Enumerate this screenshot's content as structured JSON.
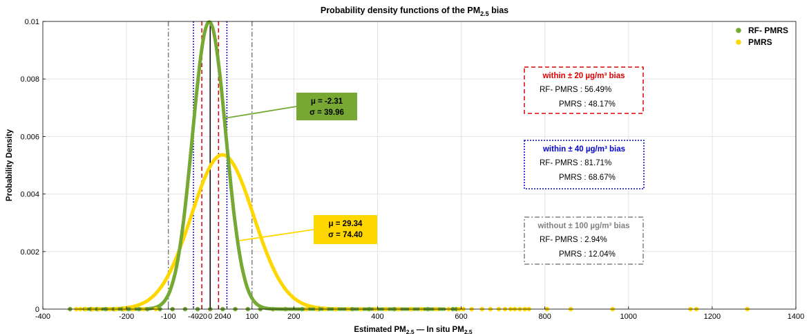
{
  "chart_data": {
    "type": "line",
    "title": "Probability density functions of the PM2.5 bias",
    "title_parts": {
      "pre": "Probability density functions of the PM",
      "sub": "2.5",
      "post": " bias"
    },
    "xlabel": "Estimated PM2.5 — In situ PM2.5",
    "xlabel_parts": {
      "a": "Estimated PM",
      "a_sub": "2.5",
      "mid": " — In situ PM",
      "b_sub": "2.5"
    },
    "ylabel": "Probability Density",
    "xlim": [
      -400,
      1400
    ],
    "ylim": [
      0,
      0.01
    ],
    "x_ticks": [
      {
        "v": -400,
        "label": "-400"
      },
      {
        "v": -200,
        "label": "-200"
      },
      {
        "v": -100,
        "label": "-100"
      },
      {
        "v": -40,
        "label": "-40"
      },
      {
        "v": -20,
        "label": "-20"
      },
      {
        "v": 0,
        "label": "0"
      },
      {
        "v": 20,
        "label": "20"
      },
      {
        "v": 40,
        "label": "40"
      },
      {
        "v": 100,
        "label": "100"
      },
      {
        "v": 200,
        "label": "200"
      },
      {
        "v": 400,
        "label": "400"
      },
      {
        "v": 600,
        "label": "600"
      },
      {
        "v": 800,
        "label": "800"
      },
      {
        "v": 1000,
        "label": "1000"
      },
      {
        "v": 1200,
        "label": "1200"
      },
      {
        "v": 1400,
        "label": "1400"
      }
    ],
    "y_ticks": [
      {
        "v": 0,
        "label": "0"
      },
      {
        "v": 0.002,
        "label": "0.002"
      },
      {
        "v": 0.004,
        "label": "0.004"
      },
      {
        "v": 0.006,
        "label": "0.006"
      },
      {
        "v": 0.008,
        "label": "0.008"
      },
      {
        "v": 0.01,
        "label": "0.01"
      }
    ],
    "grid": true,
    "legend_position": "top-right",
    "series": [
      {
        "name": "RF- PMRS",
        "color": "#76a833",
        "mu": -2.31,
        "sigma": 39.96,
        "mu_label": "μ = -2.31",
        "sigma_label": "σ = 39.96",
        "rug_x": [
          -335,
          -300,
          -285,
          -270,
          -250,
          -230,
          -210,
          -195,
          -170,
          -150,
          -120,
          -90,
          -60,
          -30,
          0,
          30,
          60,
          90,
          120,
          150,
          180,
          220,
          260,
          300,
          340,
          380,
          440,
          480,
          520,
          580,
          588
        ]
      },
      {
        "name": "PMRS",
        "color": "#ffd700",
        "mu": 29.34,
        "sigma": 74.4,
        "mu_label": "μ = 29.34",
        "sigma_label": "σ = 74.40",
        "rug_x": [
          -320,
          -310,
          -298,
          -280,
          -265,
          -240,
          -225,
          -205,
          -185,
          -160,
          -130,
          230,
          255,
          275,
          300,
          330,
          360,
          395,
          420,
          450,
          480,
          505,
          540,
          570,
          595,
          605,
          625,
          650,
          670,
          690,
          705,
          718,
          728,
          740,
          752,
          762,
          805,
          862,
          962,
          1148,
          1162,
          1284
        ]
      }
    ],
    "reference_lines": [
      {
        "x": 0,
        "style": "solid",
        "color": "#000000"
      },
      {
        "x": -20,
        "style": "dashed",
        "color": "#e00000"
      },
      {
        "x": 20,
        "style": "dashed",
        "color": "#e00000"
      },
      {
        "x": -40,
        "style": "dotted",
        "color": "#0000d0"
      },
      {
        "x": 40,
        "style": "dotted",
        "color": "#0000d0"
      },
      {
        "x": -100,
        "style": "dashdot",
        "color": "#808080"
      },
      {
        "x": 100,
        "style": "dashdot",
        "color": "#808080"
      }
    ],
    "annotations": [
      {
        "title": "within ± 20 µg/m³ bias",
        "color": "#e00000",
        "style": "dashed",
        "lines": [
          "RF- PMRS : 56.49%",
          "PMRS : 48.17%"
        ]
      },
      {
        "title": "within ± 40 µg/m³ bias",
        "color": "#0000d0",
        "style": "dotted",
        "lines": [
          "RF- PMRS : 81.71%",
          "PMRS : 68.67%"
        ]
      },
      {
        "title": "without ± 100 µg/m³ bias",
        "color": "#808080",
        "style": "dashdot",
        "lines": [
          "RF- PMRS : 2.94%",
          "PMRS : 12.04%"
        ]
      }
    ]
  }
}
